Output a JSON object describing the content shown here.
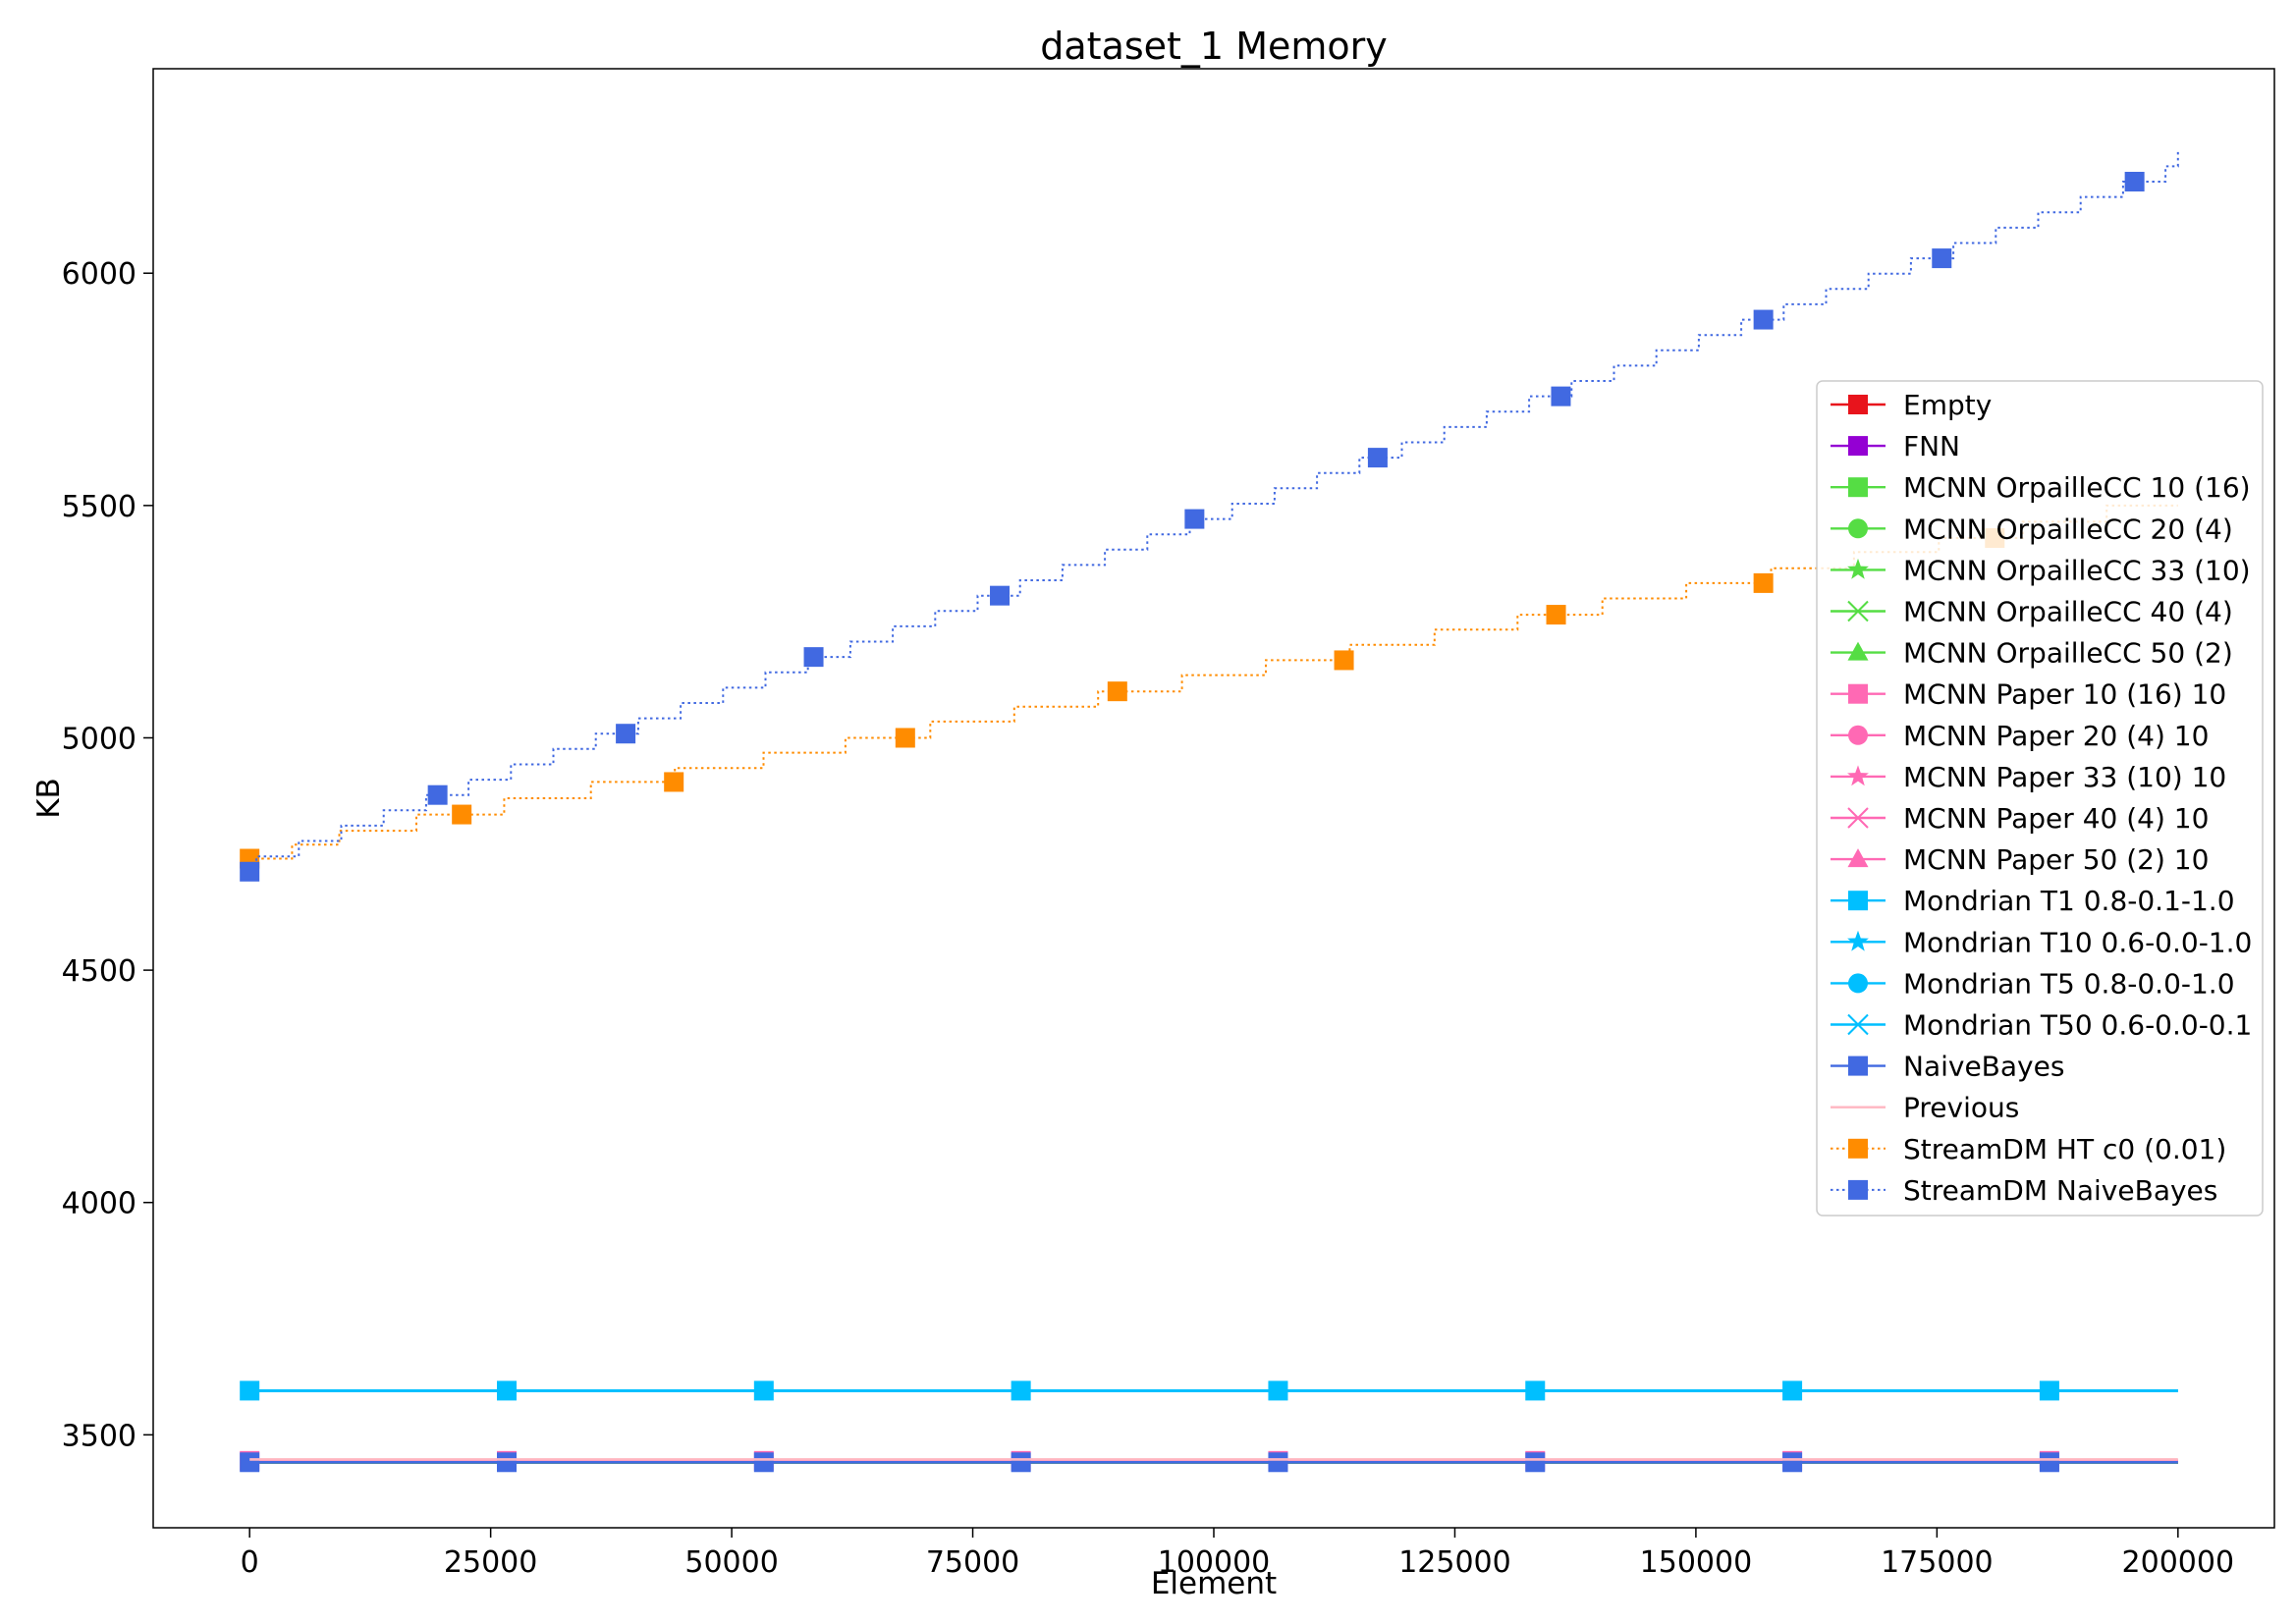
{
  "chart_data": {
    "type": "line",
    "title": "dataset_1 Memory",
    "xlabel": "Element",
    "ylabel": "KB",
    "xlim": [
      -10000,
      210000
    ],
    "ylim": [
      3300,
      6440
    ],
    "x_ticks": [
      0,
      25000,
      50000,
      75000,
      100000,
      125000,
      150000,
      175000,
      200000
    ],
    "y_ticks": [
      3500,
      4000,
      4500,
      5000,
      5500,
      6000
    ],
    "grid": false,
    "legend_position": "center-right",
    "series": [
      {
        "name": "Empty",
        "color": "#e8141c",
        "marker": "square",
        "style": "solid",
        "x": [
          0,
          200000
        ],
        "values": [
          3440,
          3440
        ],
        "marker_x": []
      },
      {
        "name": "FNN",
        "color": "#9400d3",
        "marker": "square",
        "style": "solid",
        "x": [
          0,
          200000
        ],
        "values": [
          3440,
          3440
        ],
        "marker_x": []
      },
      {
        "name": "MCNN OrpailleCC 10 (16)",
        "color": "#55dd44",
        "marker": "square",
        "style": "solid",
        "x": [
          0,
          200000
        ],
        "values": [
          3441,
          3441
        ],
        "marker_x": []
      },
      {
        "name": "MCNN OrpailleCC 20 (4)",
        "color": "#55dd44",
        "marker": "circle",
        "style": "solid",
        "x": [
          0,
          200000
        ],
        "values": [
          3441,
          3441
        ],
        "marker_x": []
      },
      {
        "name": "MCNN OrpailleCC 33 (10)",
        "color": "#55dd44",
        "marker": "star",
        "style": "solid",
        "x": [
          0,
          200000
        ],
        "values": [
          3441,
          3441
        ],
        "marker_x": []
      },
      {
        "name": "MCNN OrpailleCC 40 (4)",
        "color": "#55dd44",
        "marker": "x",
        "style": "solid",
        "x": [
          0,
          200000
        ],
        "values": [
          3441,
          3441
        ],
        "marker_x": []
      },
      {
        "name": "MCNN OrpailleCC 50 (2)",
        "color": "#55dd44",
        "marker": "triangle",
        "style": "solid",
        "x": [
          0,
          200000
        ],
        "values": [
          3441,
          3441
        ],
        "marker_x": []
      },
      {
        "name": "MCNN Paper 10 (16) 10",
        "color": "#ff69b4",
        "marker": "square",
        "style": "solid",
        "x": [
          0,
          200000
        ],
        "values": [
          3444,
          3444
        ],
        "marker_x": [
          0,
          26667,
          53333,
          80000,
          106667,
          133333,
          160000,
          186667
        ]
      },
      {
        "name": "MCNN Paper 20 (4) 10",
        "color": "#ff69b4",
        "marker": "circle",
        "style": "solid",
        "x": [
          0,
          200000
        ],
        "values": [
          3444,
          3444
        ],
        "marker_x": []
      },
      {
        "name": "MCNN Paper 33 (10) 10",
        "color": "#ff69b4",
        "marker": "star",
        "style": "solid",
        "x": [
          0,
          200000
        ],
        "values": [
          3444,
          3444
        ],
        "marker_x": []
      },
      {
        "name": "MCNN Paper 40 (4) 10",
        "color": "#ff69b4",
        "marker": "x",
        "style": "solid",
        "x": [
          0,
          200000
        ],
        "values": [
          3444,
          3444
        ],
        "marker_x": []
      },
      {
        "name": "MCNN Paper 50 (2) 10",
        "color": "#ff69b4",
        "marker": "triangle",
        "style": "solid",
        "x": [
          0,
          200000
        ],
        "values": [
          3444,
          3444
        ],
        "marker_x": []
      },
      {
        "name": "Mondrian T1 0.8-0.1-1.0",
        "color": "#00bfff",
        "marker": "square",
        "style": "solid",
        "x": [
          0,
          200000
        ],
        "values": [
          3595,
          3595
        ],
        "marker_x": [
          0,
          26667,
          53333,
          80000,
          106667,
          133333,
          160000,
          186667
        ]
      },
      {
        "name": "Mondrian T10 0.6-0.0-1.0",
        "color": "#00bfff",
        "marker": "star",
        "style": "solid",
        "x": [
          0,
          200000
        ],
        "values": [
          3595,
          3595
        ],
        "marker_x": []
      },
      {
        "name": "Mondrian T5 0.8-0.0-1.0",
        "color": "#00bfff",
        "marker": "circle",
        "style": "solid",
        "x": [
          0,
          200000
        ],
        "values": [
          3595,
          3595
        ],
        "marker_x": []
      },
      {
        "name": "Mondrian T50 0.6-0.0-0.1",
        "color": "#00bfff",
        "marker": "x",
        "style": "solid",
        "x": [
          0,
          200000
        ],
        "values": [
          3595,
          3595
        ],
        "marker_x": []
      },
      {
        "name": "NaiveBayes",
        "color": "#4169e1",
        "marker": "square",
        "style": "solid",
        "x": [
          0,
          200000
        ],
        "values": [
          3441,
          3441
        ],
        "marker_x": [
          0,
          26667,
          53333,
          80000,
          106667,
          133333,
          160000,
          186667
        ]
      },
      {
        "name": "Previous",
        "color": "#ffb6c1",
        "marker": "none",
        "style": "solid",
        "x": [
          0,
          200000
        ],
        "values": [
          3447,
          3447
        ],
        "marker_x": []
      },
      {
        "name": "StreamDM HT c0 (0.01)",
        "color": "#ff8c00",
        "marker": "square",
        "style": "dotted",
        "step": true,
        "x": [
          0,
          4400,
          9300,
          17300,
          26400,
          35400,
          44100,
          53300,
          61800,
          70600,
          79300,
          88000,
          96700,
          105400,
          114100,
          122900,
          131500,
          140300,
          149000,
          157800,
          166400,
          175200,
          183900,
          192600,
          200000
        ],
        "values": [
          4740,
          4770,
          4800,
          4835,
          4870,
          4905,
          4935,
          4968,
          5000,
          5035,
          5067,
          5100,
          5135,
          5167,
          5200,
          5233,
          5265,
          5300,
          5333,
          5365,
          5400,
          5430,
          5465,
          5500,
          5500
        ],
        "marker_x": [
          0,
          22000,
          44000,
          68000,
          90000,
          113500,
          135500,
          157000,
          181000
        ]
      },
      {
        "name": "StreamDM NaiveBayes",
        "color": "#4169e1",
        "marker": "square",
        "style": "dotted",
        "step": true,
        "x": [
          0,
          700,
          5100,
          9500,
          13900,
          18300,
          22700,
          27100,
          31500,
          35900,
          40300,
          44700,
          49100,
          53500,
          57900,
          62300,
          66700,
          71100,
          75500,
          79900,
          84300,
          88700,
          93100,
          97500,
          101900,
          106300,
          110700,
          115100,
          119500,
          123900,
          128300,
          132700,
          137100,
          141500,
          145900,
          150300,
          154700,
          159100,
          163500,
          167900,
          172300,
          176700,
          181100,
          185500,
          189900,
          194300,
          198700,
          200000
        ],
        "values": [
          4712,
          4745,
          4778,
          4811,
          4844,
          4877,
          4910,
          4943,
          4976,
          5009,
          5042,
          5075,
          5108,
          5141,
          5174,
          5207,
          5240,
          5273,
          5306,
          5339,
          5372,
          5405,
          5438,
          5471,
          5504,
          5537,
          5570,
          5603,
          5636,
          5669,
          5702,
          5735,
          5768,
          5801,
          5834,
          5867,
          5900,
          5933,
          5966,
          5999,
          6032,
          6065,
          6098,
          6131,
          6164,
          6197,
          6230,
          6263
        ],
        "marker_x": [
          0,
          19500,
          39000,
          58500,
          77800,
          98000,
          117000,
          136000,
          157000,
          175500,
          195500
        ]
      }
    ]
  }
}
